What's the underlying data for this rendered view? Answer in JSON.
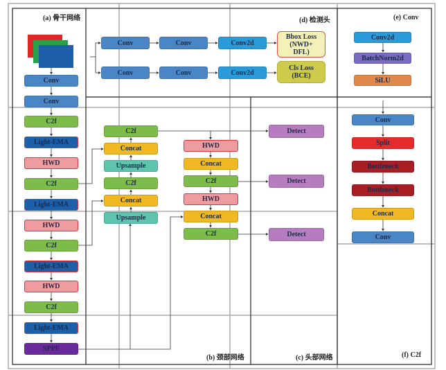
{
  "panels": {
    "a": "(a) 骨干网络",
    "b": "(b) 颈部网络",
    "c": "(c) 头部网络",
    "d": "(d) 检测头",
    "e": "(e) Conv",
    "f": "(f) C2f"
  },
  "backbone": [
    "Conv",
    "Conv",
    "C2f",
    "Light-EMA",
    "HWD",
    "C2f",
    "Light-EMA",
    "HWD",
    "C2f",
    "Light-EMA",
    "HWD",
    "C2f",
    "Light-EMA",
    "SPPF"
  ],
  "neck_col1": [
    "C2f",
    "Concat",
    "Upsample",
    "C2f",
    "Concat",
    "Upsample"
  ],
  "neck_col2": [
    "HWD",
    "Concat",
    "C2f",
    "HWD",
    "Concat",
    "C2f"
  ],
  "head": [
    "Detect",
    "Detect",
    "Detect"
  ],
  "detect_head": {
    "row1": [
      "Conv",
      "Conv",
      "Conv2d"
    ],
    "row2": [
      "Conv",
      "Conv",
      "Conv2d"
    ],
    "bbox_loss": "Bbox Loss (NWD+ DFL)",
    "cls_loss": "Cls Loss (BCE)"
  },
  "conv_block": [
    "Conv2d",
    "BatchNorm2d",
    "SiLU"
  ],
  "c2f_block": [
    "Conv",
    "Split",
    "Bottleneck",
    "Bottleneck",
    "Concat",
    "Conv"
  ]
}
